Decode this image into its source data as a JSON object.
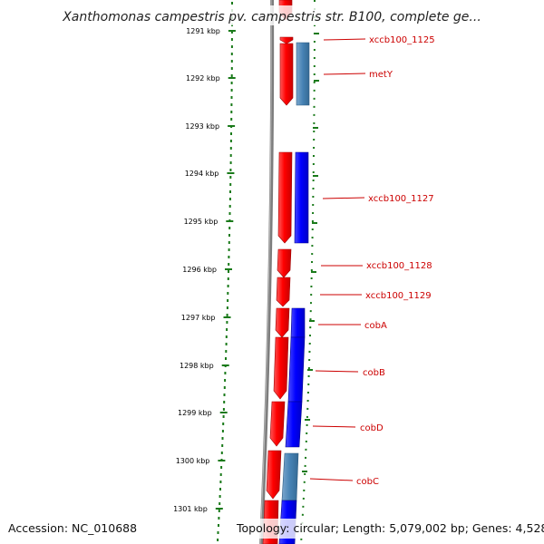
{
  "title": "Xanthomonas campestris pv. campestris str. B100, complete ge...",
  "footer": {
    "accession": "Accession: NC_010688",
    "topology": "Topology: circular; Length: 5,079,002 bp; Genes: 4,528"
  },
  "colors": {
    "forward_gene": "#ff0000",
    "reverse_gene": "#0000ff",
    "pseudo_gene": "#4682b4",
    "label": "#cc0000",
    "tick_marks": "#1a7a1a",
    "backbone": "#808080"
  },
  "ticks": [
    "1291 kbp",
    "1292 kbp",
    "1293 kbp",
    "1294 kbp",
    "1295 kbp",
    "1296 kbp",
    "1297 kbp",
    "1298 kbp",
    "1299 kbp",
    "1300 kbp",
    "1301 kbp"
  ],
  "genes": [
    {
      "label": "xccb100_1125"
    },
    {
      "label": "metY"
    },
    {
      "label": "xccb100_1127"
    },
    {
      "label": "xccb100_1128"
    },
    {
      "label": "xccb100_1129"
    },
    {
      "label": "cobA"
    },
    {
      "label": "cobB"
    },
    {
      "label": "cobD"
    },
    {
      "label": "cobC"
    }
  ]
}
